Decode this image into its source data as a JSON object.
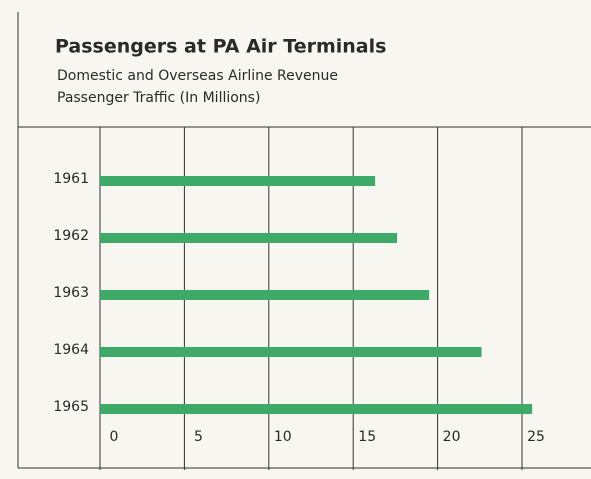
{
  "chart_data": {
    "type": "bar",
    "orientation": "horizontal",
    "title": "Passengers at PA Air Terminals",
    "subtitle": [
      "Domestic and Overseas Airline Revenue",
      "Passenger Traffic (In Millions)"
    ],
    "categories": [
      "1961",
      "1962",
      "1963",
      "1964",
      "1965"
    ],
    "values": [
      16.3,
      17.6,
      19.5,
      22.6,
      25.6
    ],
    "color": "#3daa68",
    "xlim": [
      0,
      25
    ],
    "xticks": [
      0,
      5,
      10,
      15,
      20,
      25
    ],
    "grid": true
  }
}
